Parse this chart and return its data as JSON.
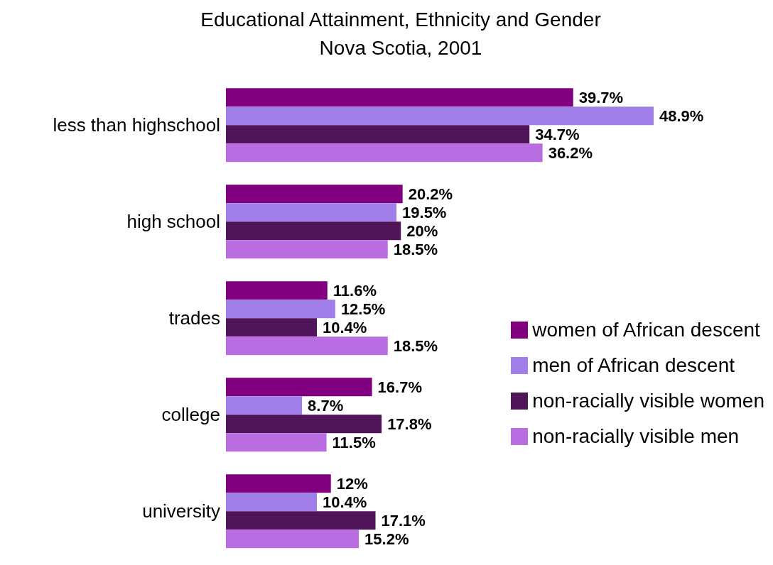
{
  "chart_data": {
    "type": "bar",
    "orientation": "horizontal",
    "title": "Educational Attainment, Ethnicity and Gender",
    "subtitle": "Nova Scotia, 2001",
    "categories": [
      "less than highschool",
      "high school",
      "trades",
      "college",
      "university"
    ],
    "series": [
      {
        "name": "women of African descent",
        "color": "#800080",
        "values": [
          39.7,
          20.2,
          11.6,
          16.7,
          12
        ],
        "value_labels": [
          "39.7%",
          "20.2%",
          "11.6%",
          "16.7%",
          "12%"
        ]
      },
      {
        "name": "men of African descent",
        "color": "#a07ee8",
        "values": [
          48.9,
          19.5,
          12.5,
          8.7,
          10.4
        ],
        "value_labels": [
          "48.9%",
          "19.5%",
          "12.5%",
          "8.7%",
          "10.4%"
        ]
      },
      {
        "name": "non-racially visible women",
        "color": "#4f1558",
        "values": [
          34.7,
          20,
          10.4,
          17.8,
          17.1
        ],
        "value_labels": [
          "34.7%",
          "20%",
          "10.4%",
          "17.8%",
          "17.1%"
        ]
      },
      {
        "name": "non-racially visible men",
        "color": "#b86ee0",
        "values": [
          36.2,
          18.5,
          18.5,
          11.5,
          15.2
        ],
        "value_labels": [
          "36.2%",
          "18.5%",
          "18.5%",
          "11.5%",
          "15.2%"
        ]
      }
    ],
    "legend": "right",
    "grid": false
  }
}
